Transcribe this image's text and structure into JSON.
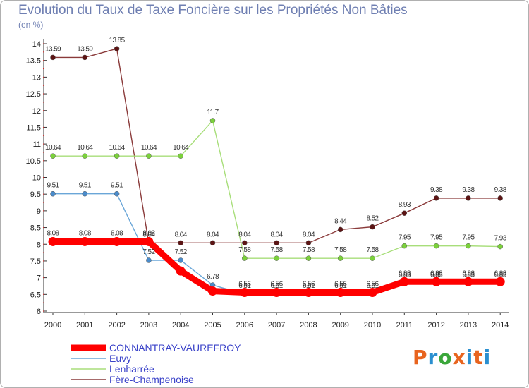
{
  "chart_data": {
    "type": "line",
    "title": "Evolution du Taux de Taxe Foncière sur les Propriétés Non Bâties",
    "subtitle": "(en %)",
    "x": [
      "2000",
      "2001",
      "2002",
      "2003",
      "2004",
      "2005",
      "2006",
      "2007",
      "2008",
      "2009",
      "2010",
      "2011",
      "2012",
      "2013",
      "2014"
    ],
    "y_ticks": [
      "6",
      "6.5",
      "7",
      "7.5",
      "8",
      "8.5",
      "9",
      "9.5",
      "10",
      "10.5",
      "11",
      "11.5",
      "12",
      "12.5",
      "13",
      "13.5",
      "14"
    ],
    "ylim": [
      6,
      14
    ],
    "grid": false,
    "legend_position": "bottom-left",
    "series": [
      {
        "name": "CONNANTRAY-VAUREFROY",
        "color": "#ff0000",
        "marker_color": "#ff0000",
        "values": [
          8.08,
          8.08,
          8.08,
          8.08,
          7.2,
          6.6,
          6.56,
          6.56,
          6.56,
          6.56,
          6.56,
          6.88,
          6.88,
          6.88,
          6.88
        ],
        "labels": [
          "8.08",
          "8.08",
          "8.08",
          "8.08",
          "",
          "",
          "6.56",
          "6.56",
          "6.56",
          "6.56",
          "6.56",
          "6.88",
          "6.88",
          "6.88",
          "6.88"
        ]
      },
      {
        "name": "Euvy",
        "color": "#6aa6d8",
        "marker_color": "#4a8ccc",
        "values": [
          9.51,
          9.51,
          9.51,
          7.52,
          7.52,
          6.78,
          6.51,
          6.51,
          6.51,
          6.51,
          6.51,
          6.83,
          6.83,
          6.83,
          6.83
        ],
        "labels": [
          "9.51",
          "9.51",
          "9.51",
          "7.52",
          "7.52",
          "6.78",
          "6.51",
          "6.51",
          "6.51",
          "6.51",
          "6.51",
          "6.83",
          "6.83",
          "6.83",
          "6.83"
        ]
      },
      {
        "name": "Lenharrée",
        "color": "#a8de7a",
        "marker_color": "#7bd13b",
        "values": [
          10.64,
          10.64,
          10.64,
          10.64,
          10.64,
          11.7,
          7.58,
          7.58,
          7.58,
          7.58,
          7.58,
          7.95,
          7.95,
          7.95,
          7.93
        ],
        "labels": [
          "10.64",
          "10.64",
          "10.64",
          "10.64",
          "10.64",
          "11.7",
          "7.58",
          "7.58",
          "7.58",
          "7.58",
          "7.58",
          "7.95",
          "7.95",
          "7.95",
          "7.93"
        ]
      },
      {
        "name": "Fère-Champenoise",
        "color": "#8a3a3a",
        "marker_color": "#5c1414",
        "values": [
          13.59,
          13.59,
          13.85,
          8.04,
          8.04,
          8.04,
          8.04,
          8.04,
          8.04,
          8.44,
          8.52,
          8.93,
          9.38,
          9.38,
          9.38
        ],
        "labels": [
          "13.59",
          "13.59",
          "13.85",
          "8.04",
          "8.04",
          "8.04",
          "8.04",
          "8.04",
          "8.04",
          "8.44",
          "8.52",
          "8.93",
          "9.38",
          "9.38",
          "9.38"
        ]
      }
    ]
  },
  "logo": {
    "text": "Proxiti",
    "colors": [
      "#e8641e",
      "#2a8fd0",
      "#3aa63a",
      "#e8641e",
      "#2a8fd0",
      "#e8641e",
      "#2a8fd0"
    ]
  }
}
